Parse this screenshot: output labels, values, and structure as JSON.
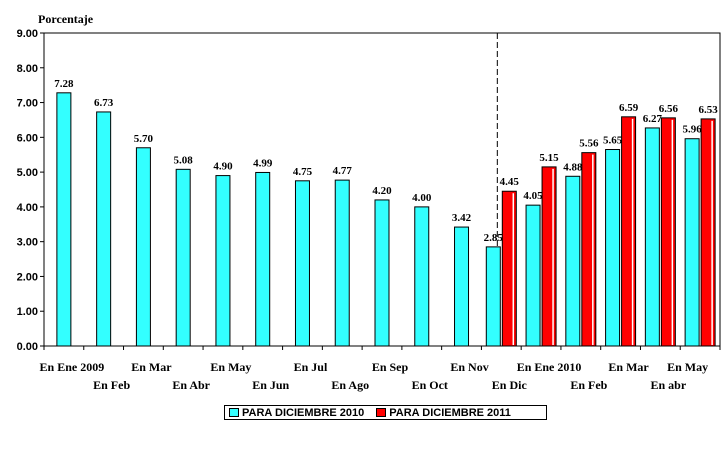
{
  "chart_data": {
    "type": "bar",
    "ylabel": "Porcentaje",
    "ylim": [
      0,
      9
    ],
    "yticks": [
      "0.00",
      "1.00",
      "2.00",
      "3.00",
      "4.00",
      "5.00",
      "6.00",
      "7.00",
      "8.00",
      "9.00"
    ],
    "categories": [
      "En Ene 2009",
      "En Feb",
      "En Mar",
      "En Abr",
      "En May",
      "En Jun",
      "En Jul",
      "En Ago",
      "En Sep",
      "En Oct",
      "En Nov",
      "En Dic",
      "En Ene 2010",
      "En Feb",
      "En Mar",
      "En abr",
      "En May"
    ],
    "series": [
      {
        "name": "PARA DICIEMBRE 2010",
        "color": "#33ffff",
        "values": [
          7.28,
          6.73,
          5.7,
          5.08,
          4.9,
          4.99,
          4.75,
          4.77,
          4.2,
          4.0,
          3.42,
          2.85,
          4.05,
          4.88,
          5.65,
          6.27,
          5.96
        ]
      },
      {
        "name": "PARA DICIEMBRE 2011",
        "color": "#ff0000",
        "values": [
          null,
          null,
          null,
          null,
          null,
          null,
          null,
          null,
          null,
          null,
          null,
          4.45,
          5.15,
          5.56,
          6.59,
          6.56,
          6.53
        ]
      }
    ],
    "divider_after_category": 11,
    "grid": false,
    "legend_position": "bottom"
  }
}
